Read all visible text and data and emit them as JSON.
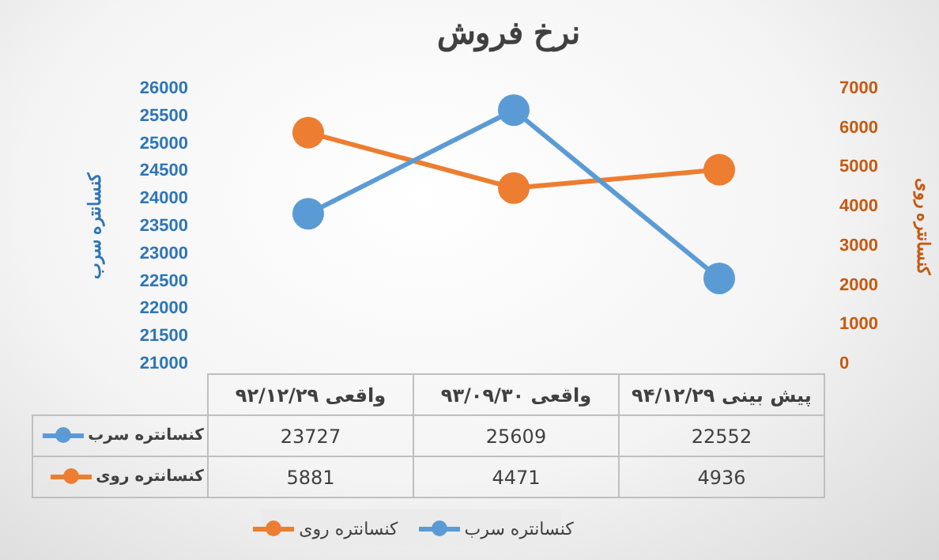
{
  "chart_data": {
    "type": "line",
    "title": "نرخ فروش",
    "ylabel": "کنسانتره سرب",
    "y2label": "کنسانتره روی",
    "categories": [
      "واقعی ۹۲/۱۲/۲۹",
      "واقعی ۹۳/۰۹/۳۰",
      "پیش بینی ۹۴/۱۲/۲۹"
    ],
    "series": [
      {
        "name": "کنسانتره سرب",
        "color": "#5b9bd5",
        "values": [
          23727,
          25609,
          22552
        ]
      },
      {
        "name": "کنسانتره روی",
        "color": "#ed7d31",
        "values": [
          5881,
          4471,
          4936
        ],
        "axis": "y2"
      }
    ],
    "ylim": [
      21000,
      26000
    ],
    "yticks": [
      21000,
      21500,
      22000,
      22500,
      23000,
      23500,
      24000,
      24500,
      25000,
      25500,
      26000
    ],
    "y2lim": [
      0,
      7000
    ],
    "y2ticks": [
      0,
      1000,
      2000,
      3000,
      4000,
      5000,
      6000,
      7000
    ],
    "grid": false,
    "legend": "bottom",
    "marker": "circle",
    "line_style": "solid",
    "data_labels": true
  }
}
